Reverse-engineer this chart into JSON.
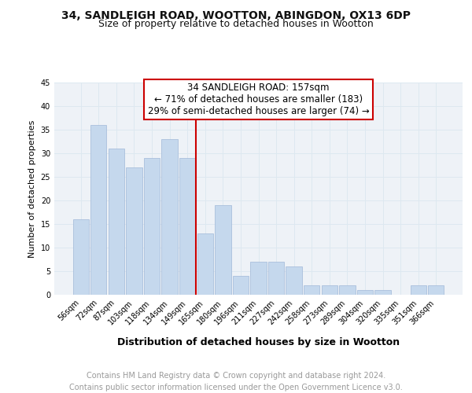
{
  "title1": "34, SANDLEIGH ROAD, WOOTTON, ABINGDON, OX13 6DP",
  "title2": "Size of property relative to detached houses in Wootton",
  "xlabel": "Distribution of detached houses by size in Wootton",
  "ylabel": "Number of detached properties",
  "categories": [
    "56sqm",
    "72sqm",
    "87sqm",
    "103sqm",
    "118sqm",
    "134sqm",
    "149sqm",
    "165sqm",
    "180sqm",
    "196sqm",
    "211sqm",
    "227sqm",
    "242sqm",
    "258sqm",
    "273sqm",
    "289sqm",
    "304sqm",
    "320sqm",
    "335sqm",
    "351sqm",
    "366sqm"
  ],
  "values": [
    16,
    36,
    31,
    27,
    29,
    33,
    29,
    13,
    19,
    4,
    7,
    7,
    6,
    2,
    2,
    2,
    1,
    1,
    0,
    2,
    2
  ],
  "bar_color": "#c5d8ed",
  "bar_edge_color": "#a0b8d8",
  "grid_color": "#dde8f0",
  "background_color": "#eef2f7",
  "annotation_line1": "34 SANDLEIGH ROAD: 157sqm",
  "annotation_line2": "← 71% of detached houses are smaller (183)",
  "annotation_line3": "29% of semi-detached houses are larger (74) →",
  "vline_color": "#cc0000",
  "annotation_box_color": "#ffffff",
  "annotation_box_edge": "#cc0000",
  "ylim": [
    0,
    45
  ],
  "yticks": [
    0,
    5,
    10,
    15,
    20,
    25,
    30,
    35,
    40,
    45
  ],
  "footer": "Contains HM Land Registry data © Crown copyright and database right 2024.\nContains public sector information licensed under the Open Government Licence v3.0.",
  "footer_color": "#999999",
  "title_fontsize": 10,
  "subtitle_fontsize": 9,
  "xlabel_fontsize": 9,
  "ylabel_fontsize": 8,
  "tick_fontsize": 7,
  "annotation_fontsize": 8.5,
  "footer_fontsize": 7
}
